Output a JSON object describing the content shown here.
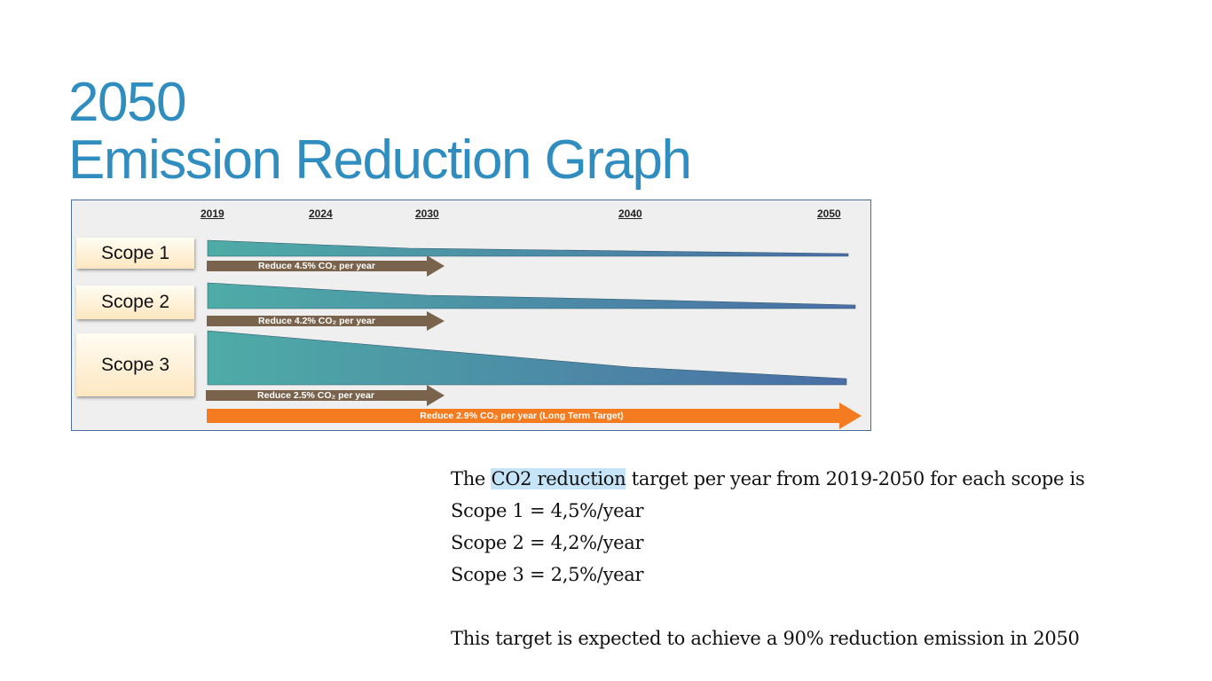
{
  "title": {
    "line1": "2050",
    "line2": "Emission Reduction Graph"
  },
  "diagram": {
    "years": [
      "2019",
      "2024",
      "2030",
      "2040",
      "2050"
    ],
    "scopes": [
      "Scope 1",
      "Scope 2",
      "Scope 3"
    ],
    "arrows": [
      "Reduce 4.5% CO₂ per year",
      "Reduce 4.2% CO₂ per year",
      "Reduce 2.5% CO₂ per year"
    ],
    "long_term": "Reduce 2.9% CO₂ per year (Long Term Target)",
    "colors": {
      "wedge_start": "#4eaca6",
      "wedge_end": "#4a6ea6",
      "arrow": "#7a634c",
      "long_term": "#f47b20"
    }
  },
  "text": {
    "intro_pre": "The ",
    "intro_highlight": "CO2 reduction",
    "intro_post": " target per year from 2019-2050 for each scope is",
    "scope1": "Scope 1 = 4,5%/year",
    "scope2": "Scope 2 = 4,2%/year",
    "scope3": "Scope 3 = 2,5%/year",
    "conclusion": "This target is expected to achieve a 90% reduction emission in 2050"
  }
}
